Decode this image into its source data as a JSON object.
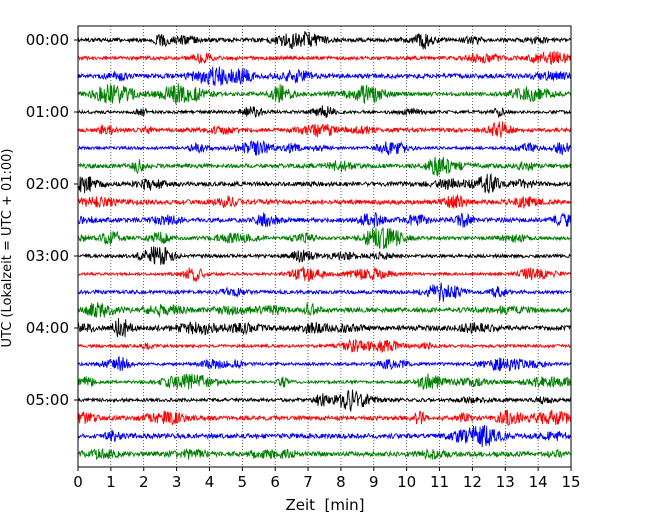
{
  "chart_data": {
    "type": "line",
    "title": "",
    "xlabel": "Zeit  [min]",
    "ylabel": "UTC (Lokalzeit = UTC + 01:00)",
    "xlim": [
      0,
      15
    ],
    "x_ticks": [
      "0",
      "1",
      "2",
      "3",
      "4",
      "5",
      "6",
      "7",
      "8",
      "9",
      "10",
      "11",
      "12",
      "13",
      "14",
      "15"
    ],
    "y_tick_labels": [
      "00:00",
      "01:00",
      "02:00",
      "03:00",
      "04:00",
      "05:00"
    ],
    "grid_x": true,
    "grid_style": "dotted",
    "trace_colors": [
      "#000000",
      "#ff0000",
      "#0000ff",
      "#008000"
    ],
    "series": [
      {
        "start": "00:00",
        "color": "#000000"
      },
      {
        "start": "00:15",
        "color": "#ff0000"
      },
      {
        "start": "00:30",
        "color": "#0000ff"
      },
      {
        "start": "00:45",
        "color": "#008000"
      },
      {
        "start": "01:00",
        "color": "#000000"
      },
      {
        "start": "01:15",
        "color": "#ff0000"
      },
      {
        "start": "01:30",
        "color": "#0000ff"
      },
      {
        "start": "01:45",
        "color": "#008000"
      },
      {
        "start": "02:00",
        "color": "#000000"
      },
      {
        "start": "02:15",
        "color": "#ff0000"
      },
      {
        "start": "02:30",
        "color": "#0000ff"
      },
      {
        "start": "02:45",
        "color": "#008000"
      },
      {
        "start": "03:00",
        "color": "#000000"
      },
      {
        "start": "03:15",
        "color": "#ff0000"
      },
      {
        "start": "03:30",
        "color": "#0000ff"
      },
      {
        "start": "03:45",
        "color": "#008000"
      },
      {
        "start": "04:00",
        "color": "#000000"
      },
      {
        "start": "04:15",
        "color": "#ff0000"
      },
      {
        "start": "04:30",
        "color": "#0000ff"
      },
      {
        "start": "04:45",
        "color": "#008000"
      },
      {
        "start": "05:00",
        "color": "#000000"
      },
      {
        "start": "05:15",
        "color": "#ff0000"
      },
      {
        "start": "05:30",
        "color": "#0000ff"
      },
      {
        "start": "05:45",
        "color": "#008000"
      }
    ]
  }
}
